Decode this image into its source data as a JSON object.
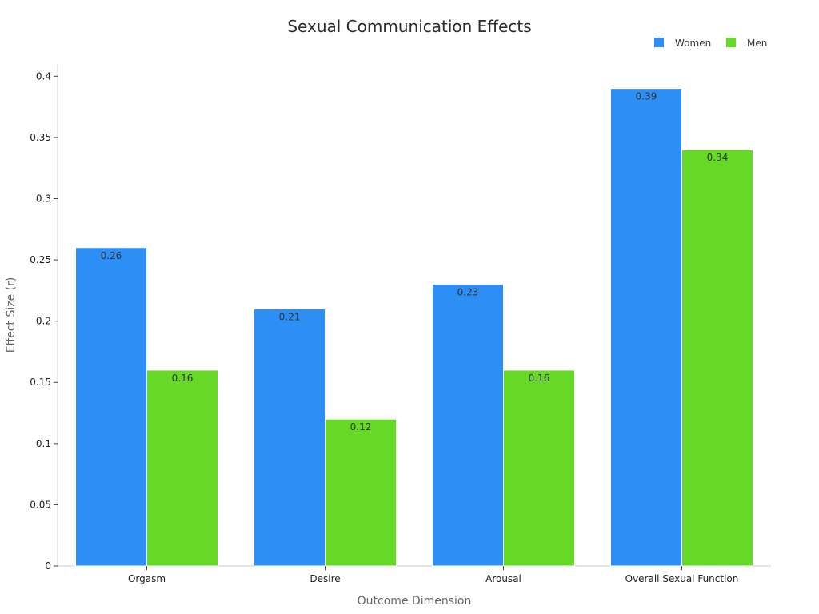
{
  "chart_data": {
    "type": "bar",
    "title": "Sexual Communication Effects",
    "xlabel": "Outcome Dimension",
    "ylabel": "Effect Size (r)",
    "categories": [
      "Orgasm",
      "Desire",
      "Arousal",
      "Overall Sexual Function"
    ],
    "series": [
      {
        "name": "Women",
        "color": "#2d8ff5",
        "values": [
          0.26,
          0.21,
          0.23,
          0.39
        ],
        "labels": [
          "0.26",
          "0.21",
          "0.23",
          "0.39"
        ]
      },
      {
        "name": "Men",
        "color": "#66d926",
        "values": [
          0.16,
          0.12,
          0.16,
          0.34
        ],
        "labels": [
          "0.16",
          "0.12",
          "0.16",
          "0.34"
        ]
      }
    ],
    "ylim": [
      0,
      0.41
    ],
    "yticks": [
      0,
      0.05,
      0.1,
      0.15,
      0.2,
      0.25,
      0.3,
      0.35,
      0.4
    ],
    "ytick_labels": [
      "0",
      "0.05",
      "0.1",
      "0.15",
      "0.2",
      "0.25",
      "0.3",
      "0.35",
      "0.4"
    ],
    "legend_position": "top-right",
    "grid": false
  }
}
